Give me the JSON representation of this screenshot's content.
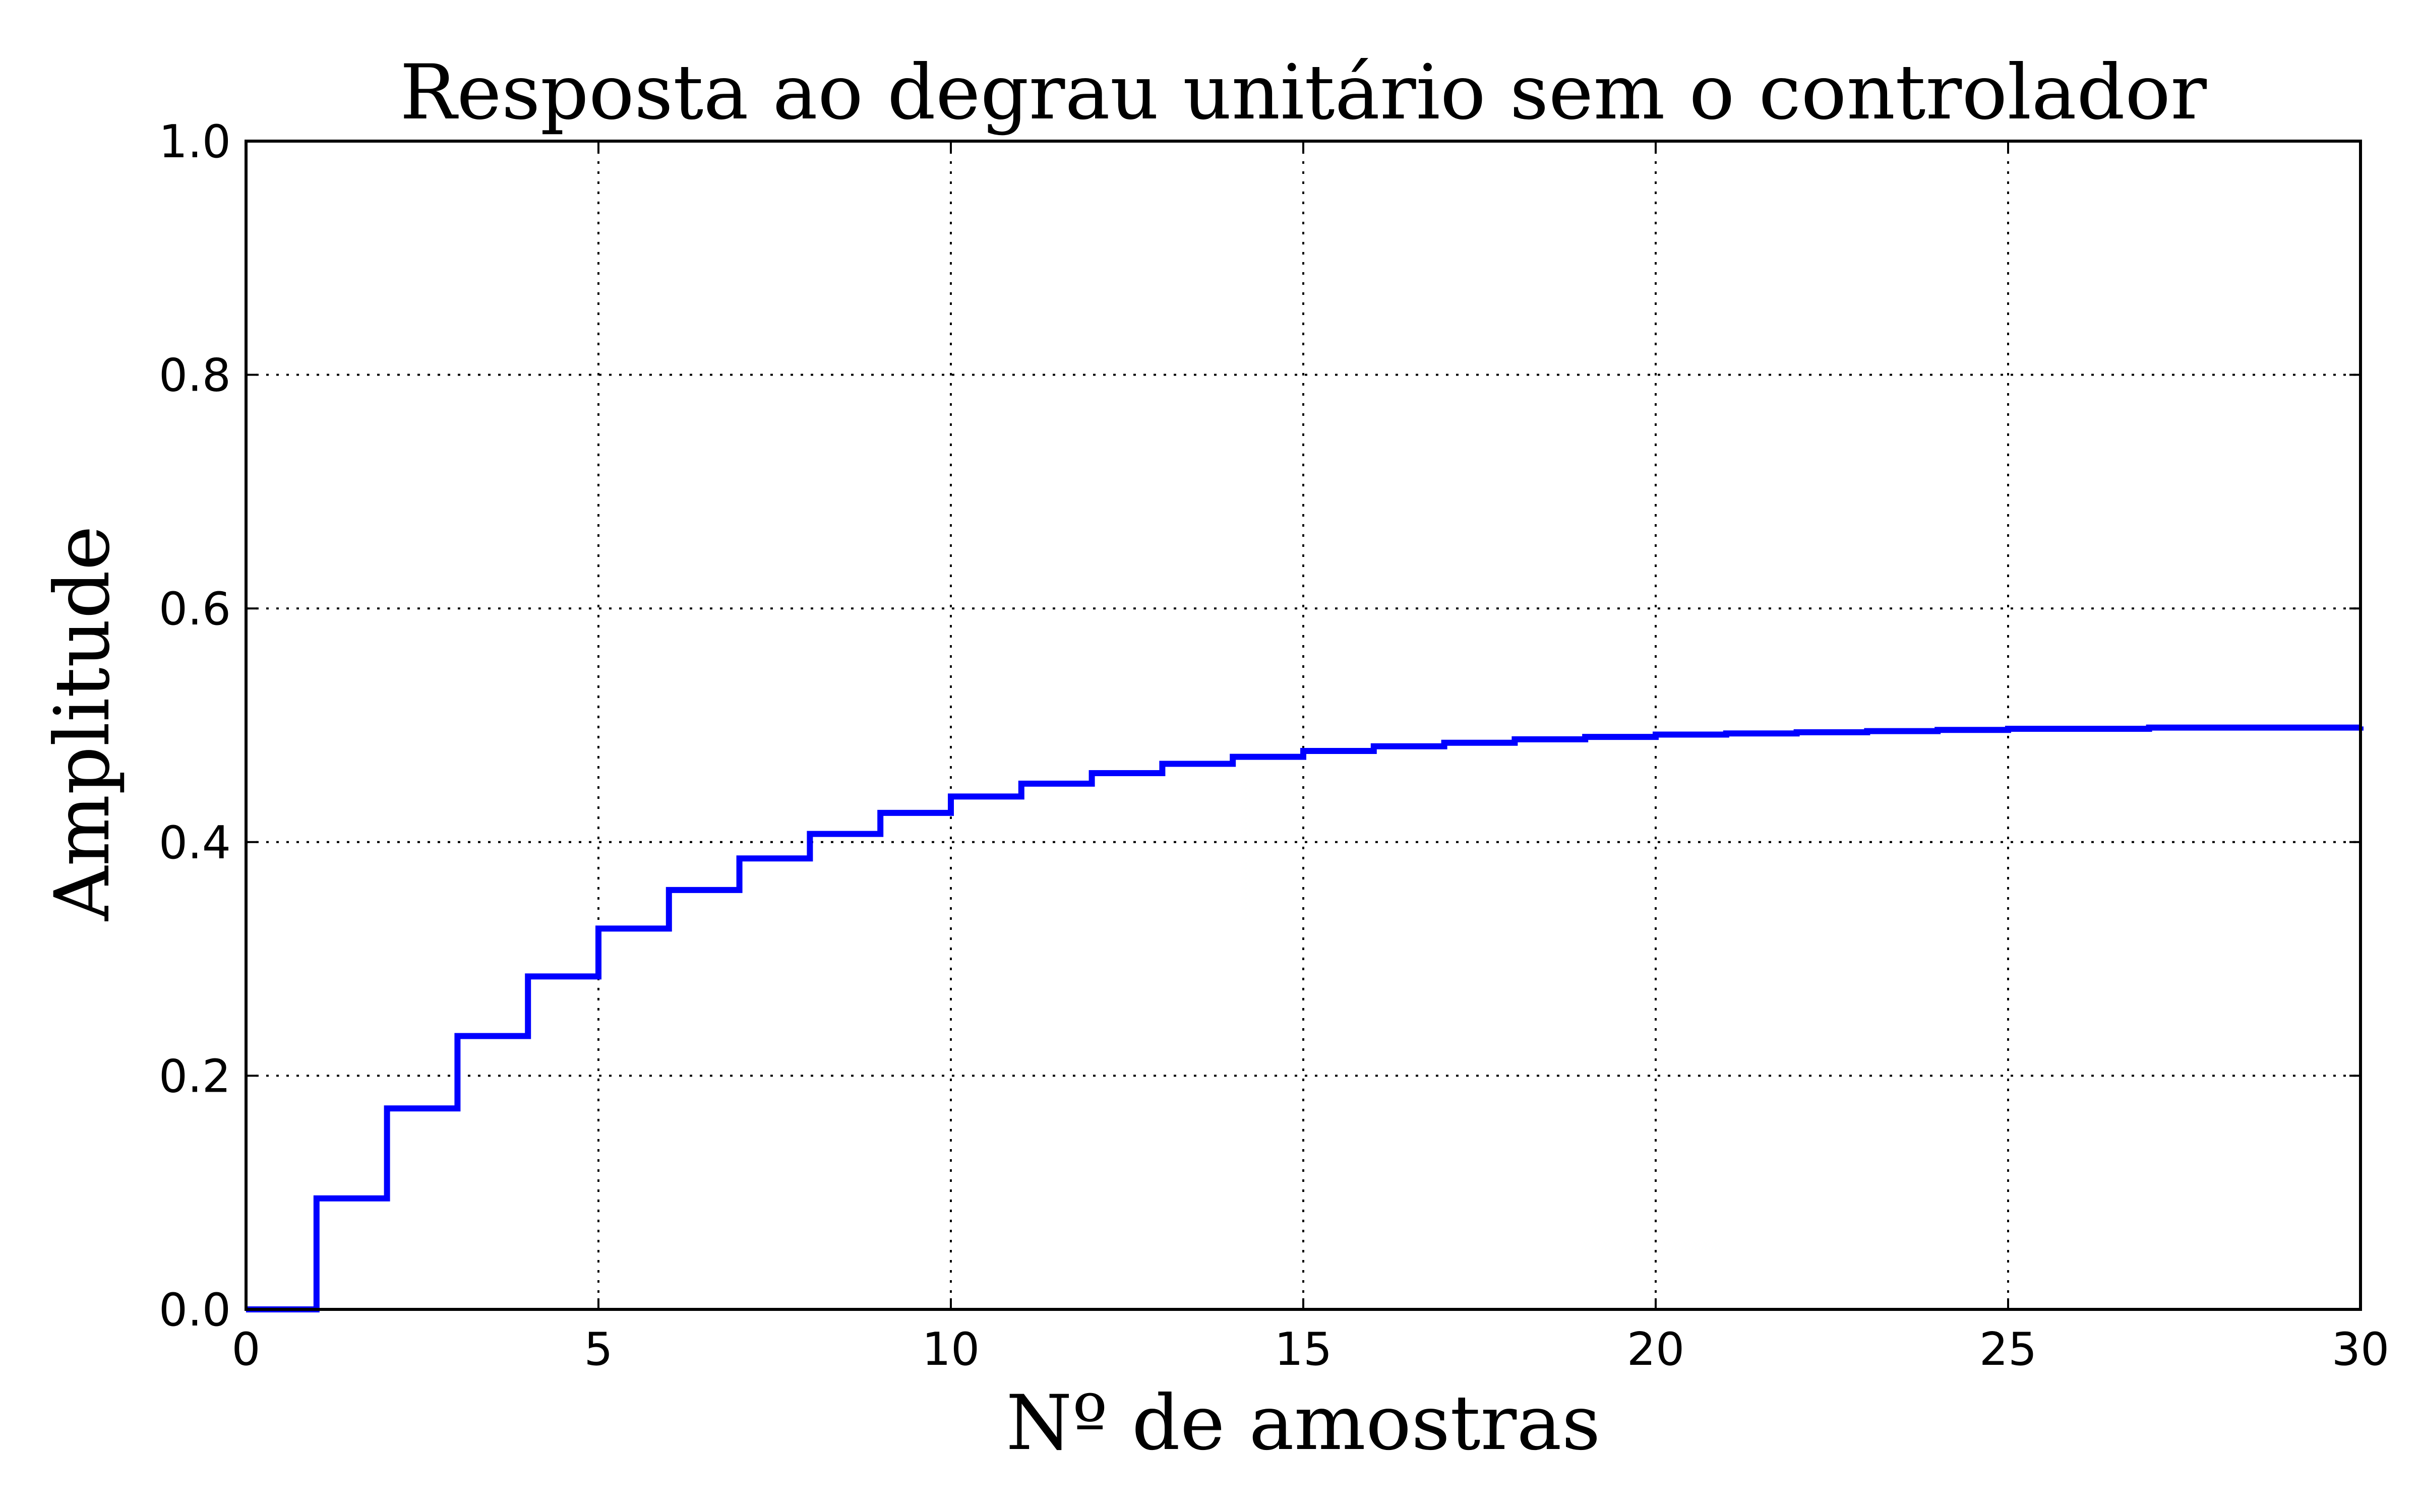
{
  "chart_data": {
    "type": "line",
    "step": true,
    "title": "Resposta ao degrau unitário sem o controlador",
    "xlabel": "Nº de amostras",
    "ylabel": "Amplitude",
    "xlim": [
      0,
      30
    ],
    "ylim": [
      0,
      1.0
    ],
    "xticks": [
      0,
      5,
      10,
      15,
      20,
      25,
      30
    ],
    "xtick_labels": [
      "0",
      "5",
      "10",
      "15",
      "20",
      "25",
      "30"
    ],
    "yticks": [
      0,
      0.2,
      0.4,
      0.6,
      0.8,
      1.0
    ],
    "ytick_labels": [
      "0.0",
      "0.2",
      "0.4",
      "0.6",
      "0.8",
      "1.0"
    ],
    "grid": true,
    "series": [
      {
        "color": "#0000ff",
        "x": [
          0,
          1,
          2,
          3,
          4,
          5,
          6,
          7,
          8,
          9,
          10,
          11,
          12,
          13,
          14,
          15,
          16,
          17,
          18,
          19,
          20,
          21,
          22,
          23,
          24,
          25,
          26,
          27,
          28,
          29,
          30
        ],
        "y": [
          0.0,
          0.095,
          0.172,
          0.234,
          0.285,
          0.326,
          0.359,
          0.386,
          0.407,
          0.425,
          0.439,
          0.45,
          0.459,
          0.467,
          0.473,
          0.478,
          0.482,
          0.485,
          0.488,
          0.49,
          0.492,
          0.493,
          0.494,
          0.495,
          0.496,
          0.497,
          0.497,
          0.498,
          0.498,
          0.498,
          0.499
        ]
      }
    ]
  }
}
